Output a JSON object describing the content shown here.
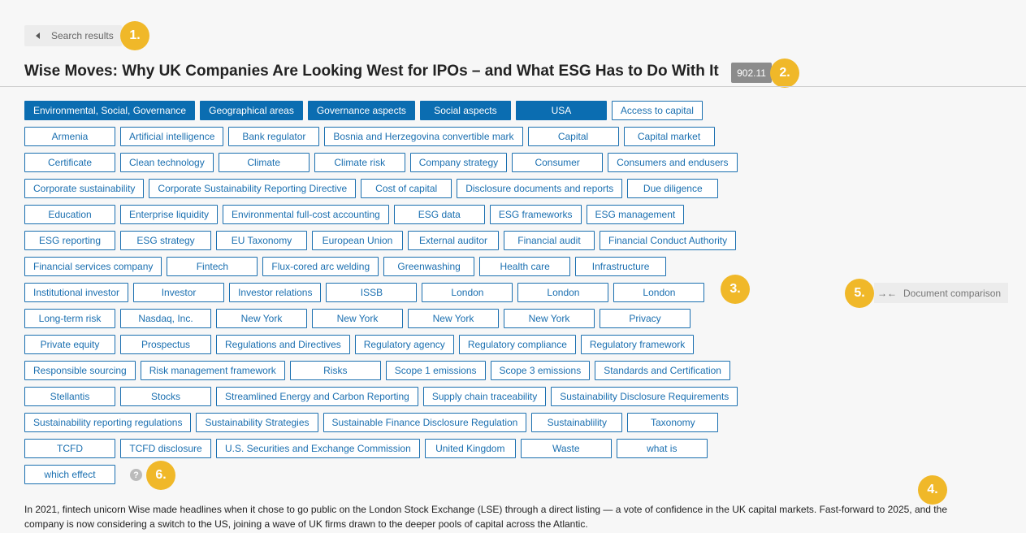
{
  "back": {
    "label": "Search results"
  },
  "title": "Wise Moves: Why UK Companies Are Looking West for IPOs – and What ESG Has to Do With It",
  "score": "902.11",
  "markers": [
    "1.",
    "2.",
    "3.",
    "4.",
    "5.",
    "6."
  ],
  "tag_rows": [
    [
      {
        "label": "Environmental, Social, Governance",
        "selected": true
      },
      {
        "label": "Geographical areas",
        "selected": true
      },
      {
        "label": "Governance aspects",
        "selected": true
      },
      {
        "label": "Social aspects",
        "selected": true
      },
      {
        "label": "USA",
        "selected": true
      },
      {
        "label": "Access to capital",
        "selected": false
      }
    ],
    [
      {
        "label": "Armenia"
      },
      {
        "label": "Artificial intelligence"
      },
      {
        "label": "Bank regulator"
      },
      {
        "label": "Bosnia and Herzegovina convertible mark"
      },
      {
        "label": "Capital"
      },
      {
        "label": "Capital market"
      }
    ],
    [
      {
        "label": "Certificate"
      },
      {
        "label": "Clean technology"
      },
      {
        "label": "Climate"
      },
      {
        "label": "Climate risk"
      },
      {
        "label": "Company strategy"
      },
      {
        "label": "Consumer"
      },
      {
        "label": "Consumers and endusers"
      }
    ],
    [
      {
        "label": "Corporate sustainability"
      },
      {
        "label": "Corporate Sustainability Reporting Directive"
      },
      {
        "label": "Cost of capital"
      },
      {
        "label": "Disclosure documents and reports"
      },
      {
        "label": "Due diligence"
      }
    ],
    [
      {
        "label": "Education"
      },
      {
        "label": "Enterprise liquidity"
      },
      {
        "label": "Environmental full-cost accounting"
      },
      {
        "label": "ESG data"
      },
      {
        "label": "ESG frameworks"
      },
      {
        "label": "ESG management"
      }
    ],
    [
      {
        "label": "ESG reporting"
      },
      {
        "label": "ESG strategy"
      },
      {
        "label": "EU Taxonomy"
      },
      {
        "label": "European Union"
      },
      {
        "label": "External auditor"
      },
      {
        "label": "Financial audit"
      },
      {
        "label": "Financial Conduct Authority"
      }
    ],
    [
      {
        "label": "Financial services company"
      },
      {
        "label": "Fintech"
      },
      {
        "label": "Flux-cored arc welding"
      },
      {
        "label": "Greenwashing"
      },
      {
        "label": "Health care"
      },
      {
        "label": "Infrastructure"
      }
    ],
    [
      {
        "label": "Institutional investor"
      },
      {
        "label": "Investor"
      },
      {
        "label": "Investor relations"
      },
      {
        "label": "ISSB"
      },
      {
        "label": "London"
      },
      {
        "label": "London"
      },
      {
        "label": "London"
      }
    ],
    [
      {
        "label": "Long-term risk"
      },
      {
        "label": "Nasdaq, Inc."
      },
      {
        "label": "New York"
      },
      {
        "label": "New York"
      },
      {
        "label": "New York"
      },
      {
        "label": "New York"
      },
      {
        "label": "Privacy"
      }
    ],
    [
      {
        "label": "Private equity"
      },
      {
        "label": "Prospectus"
      },
      {
        "label": "Regulations and Directives"
      },
      {
        "label": "Regulatory agency"
      },
      {
        "label": "Regulatory compliance"
      },
      {
        "label": "Regulatory framework"
      }
    ],
    [
      {
        "label": "Responsible sourcing"
      },
      {
        "label": "Risk management framework"
      },
      {
        "label": "Risks"
      },
      {
        "label": "Scope 1 emissions"
      },
      {
        "label": "Scope 3 emissions"
      },
      {
        "label": "Standards and Certification"
      }
    ],
    [
      {
        "label": "Stellantis"
      },
      {
        "label": "Stocks"
      },
      {
        "label": "Streamlined Energy and Carbon Reporting"
      },
      {
        "label": "Supply chain traceability"
      },
      {
        "label": "Sustainability Disclosure Requirements"
      }
    ],
    [
      {
        "label": "Sustainability reporting regulations"
      },
      {
        "label": "Sustainability Strategies"
      },
      {
        "label": "Sustainable Finance Disclosure Regulation"
      },
      {
        "label": "Sustainablility"
      },
      {
        "label": "Taxonomy"
      }
    ],
    [
      {
        "label": "TCFD"
      },
      {
        "label": "TCFD disclosure"
      },
      {
        "label": "U.S. Securities and Exchange Commission"
      },
      {
        "label": "United Kingdom"
      },
      {
        "label": "Waste"
      },
      {
        "label": "what is"
      }
    ],
    [
      {
        "label": "which effect"
      }
    ]
  ],
  "help_icon": "?",
  "document_comparison": {
    "label": "Document comparison"
  },
  "body_text": "In 2021, fintech unicorn Wise made headlines when it chose to go public on the London Stock Exchange (LSE) through a direct listing — a vote of confidence in the UK capital markets. Fast-forward to 2025, and the company is now considering a switch to the US, joining a wave of UK firms drawn to the deeper pools of capital across the Atlantic.",
  "colors": {
    "accent": "#0b6db1",
    "marker": "#f0b829",
    "score_bg": "#8c8c8c"
  }
}
